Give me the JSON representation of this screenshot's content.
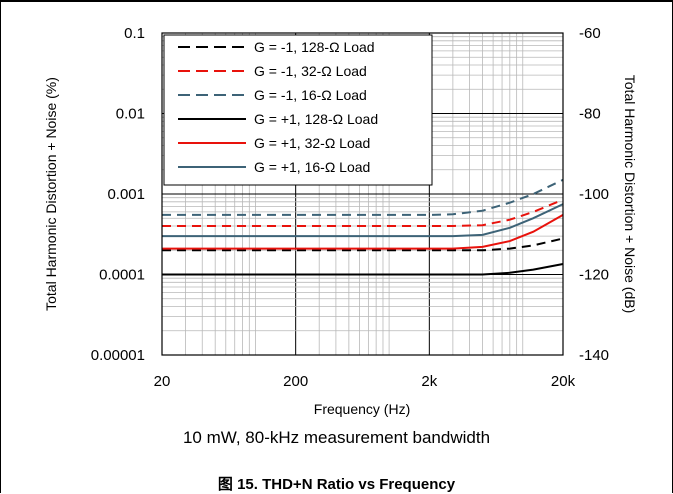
{
  "chart_data": {
    "type": "line",
    "x_scale": "log",
    "y_scale": "log",
    "xlim": [
      20,
      20000
    ],
    "ylim": [
      1e-05,
      0.1
    ],
    "y2lim": [
      -140,
      -60
    ],
    "xlabel": "Frequency (Hz)",
    "ylabel": "Total Harmonic Distortion + Noise (%)",
    "y2label": "Total Harmonic Distortion + Noise (dB)",
    "x_ticks": [
      {
        "value": 20,
        "label": "20"
      },
      {
        "value": 200,
        "label": "200"
      },
      {
        "value": 2000,
        "label": "2k"
      },
      {
        "value": 20000,
        "label": "20k"
      }
    ],
    "y_ticks": [
      {
        "value": 0.1,
        "label": "0.1"
      },
      {
        "value": 0.01,
        "label": "0.01"
      },
      {
        "value": 0.001,
        "label": "0.001"
      },
      {
        "value": 0.0001,
        "label": "0.0001"
      },
      {
        "value": 1e-05,
        "label": "0.00001"
      }
    ],
    "y2_ticks": [
      {
        "value": -60,
        "label": "-60"
      },
      {
        "value": -80,
        "label": "-80"
      },
      {
        "value": -100,
        "label": "-100"
      },
      {
        "value": -120,
        "label": "-120"
      },
      {
        "value": -140,
        "label": "-140"
      }
    ],
    "grid": true,
    "legend_position": "top-left",
    "series": [
      {
        "name": "G = -1, 128-Ω Load",
        "color": "#000000",
        "dash": true,
        "x": [
          20,
          50,
          100,
          200,
          500,
          1000,
          2000,
          3000,
          5000,
          8000,
          12000,
          20000
        ],
        "y": [
          0.0002,
          0.0002,
          0.0002,
          0.0002,
          0.0002,
          0.0002,
          0.0002,
          0.0002,
          0.0002,
          0.00021,
          0.00023,
          0.00028
        ]
      },
      {
        "name": "G = -1, 32-Ω Load",
        "color": "#e8120c",
        "dash": true,
        "x": [
          20,
          50,
          100,
          200,
          500,
          1000,
          2000,
          3000,
          5000,
          8000,
          12000,
          20000
        ],
        "y": [
          0.0004,
          0.0004,
          0.0004,
          0.0004,
          0.0004,
          0.0004,
          0.0004,
          0.0004,
          0.00041,
          0.00048,
          0.0006,
          0.00085
        ]
      },
      {
        "name": "G = -1, 16-Ω Load",
        "color": "#3d6377",
        "dash": true,
        "x": [
          20,
          50,
          100,
          200,
          500,
          1000,
          2000,
          3000,
          5000,
          8000,
          12000,
          20000
        ],
        "y": [
          0.00055,
          0.00055,
          0.00055,
          0.00055,
          0.00055,
          0.00055,
          0.00055,
          0.00056,
          0.00062,
          0.00078,
          0.001,
          0.0015
        ]
      },
      {
        "name": "G = +1, 128-Ω Load",
        "color": "#000000",
        "dash": false,
        "x": [
          20,
          50,
          100,
          200,
          500,
          1000,
          2000,
          3000,
          5000,
          8000,
          12000,
          20000
        ],
        "y": [
          0.0001,
          0.0001,
          0.0001,
          0.0001,
          0.0001,
          0.0001,
          0.0001,
          0.0001,
          0.0001,
          0.000105,
          0.000115,
          0.000135
        ]
      },
      {
        "name": "G = +1, 32-Ω Load",
        "color": "#e8120c",
        "dash": false,
        "x": [
          20,
          50,
          100,
          200,
          500,
          1000,
          2000,
          3000,
          5000,
          8000,
          12000,
          20000
        ],
        "y": [
          0.00021,
          0.00021,
          0.00021,
          0.00021,
          0.00021,
          0.00021,
          0.00021,
          0.00021,
          0.00022,
          0.00026,
          0.00034,
          0.00055
        ]
      },
      {
        "name": "G = +1, 16-Ω Load",
        "color": "#3d6377",
        "dash": false,
        "x": [
          20,
          50,
          100,
          200,
          500,
          1000,
          2000,
          3000,
          5000,
          8000,
          12000,
          20000
        ],
        "y": [
          0.0003,
          0.0003,
          0.0003,
          0.0003,
          0.0003,
          0.0003,
          0.0003,
          0.0003,
          0.00031,
          0.00038,
          0.0005,
          0.00075
        ]
      }
    ]
  },
  "subtitle": "10 mW, 80-kHz measurement bandwidth",
  "figure_caption": "图 15. THD+N Ratio vs Frequency"
}
